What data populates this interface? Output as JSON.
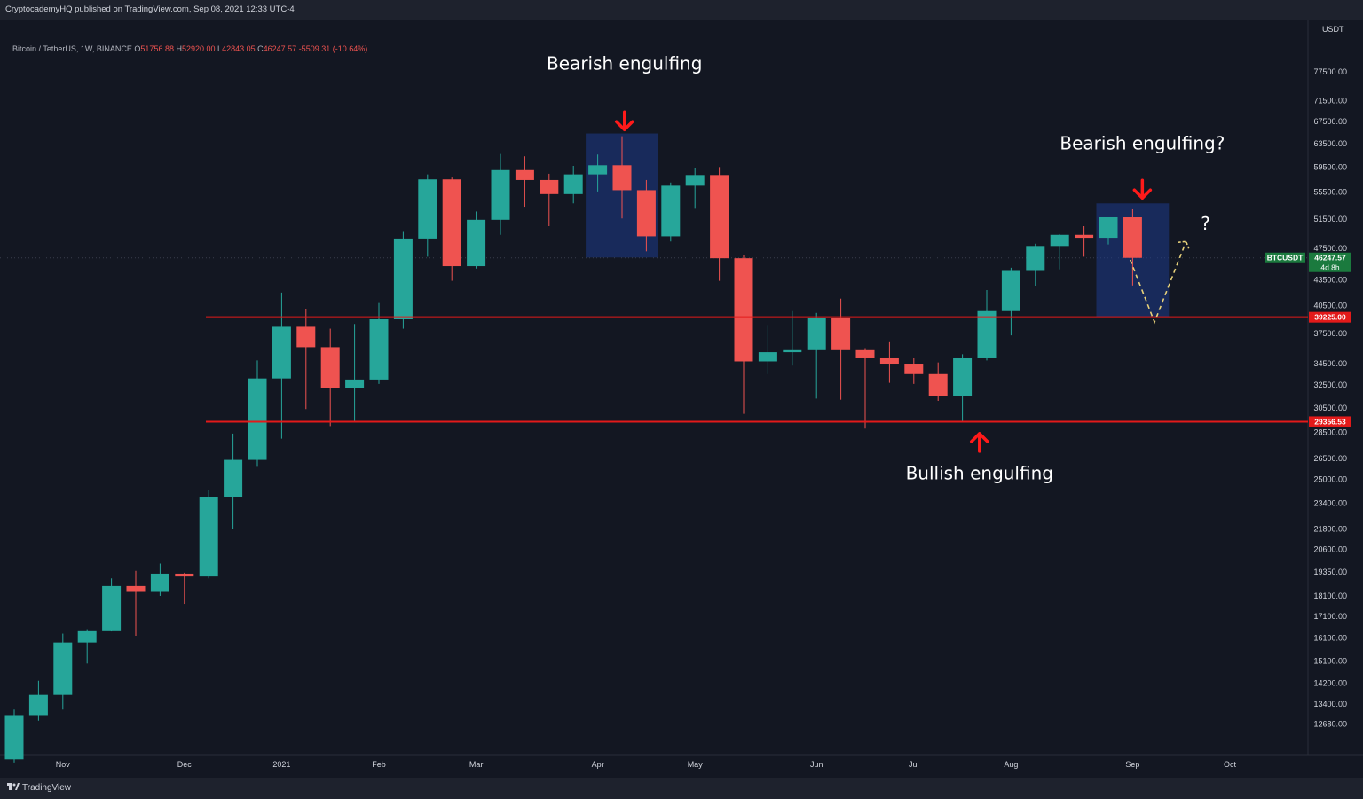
{
  "header": {
    "published": "CryptocademyHQ published on TradingView.com, Sep 08, 2021 12:33 UTC-4"
  },
  "legend": {
    "symbol": "Bitcoin / TetherUS, 1W, BINANCE",
    "o_label": "O",
    "o": "51756.88",
    "h_label": "H",
    "h": "52920.00",
    "l_label": "L",
    "l": "42843.05",
    "c_label": "C",
    "c": "46247.57",
    "change": "-5509.31 (-10.64%)"
  },
  "footer": {
    "logo": "TradingView"
  },
  "colors": {
    "background": "#131722",
    "up": "#26a69a",
    "down": "#ef5350",
    "level_line": "#e31a1a",
    "highlight_box": "#1e3a8a",
    "badge_green": "#1b7a3e",
    "projection": "#e8d27a"
  },
  "chart_data": {
    "type": "candlestick",
    "symbol": "BTCUSDT",
    "interval": "1W",
    "currency": "USDT",
    "y_scale": "log",
    "ylim": [
      12000,
      82000
    ],
    "y_ticks": [
      77500,
      71500,
      67500,
      63500,
      59500,
      55500,
      51500,
      47500,
      43500,
      40500,
      37500,
      34500,
      32500,
      30500,
      28500,
      26500,
      25000,
      23400,
      21800,
      20600,
      19350,
      18100,
      17100,
      16100,
      15100,
      14200,
      13400,
      12680
    ],
    "y_tick_labels": [
      "77500.00",
      "71500.00",
      "67500.00",
      "63500.00",
      "59500.00",
      "55500.00",
      "51500.00",
      "47500.00",
      "43500.00",
      "40500.00",
      "37500.00",
      "34500.00",
      "32500.00",
      "30500.00",
      "28500.00",
      "26500.00",
      "25000.00",
      "23400.00",
      "21800.00",
      "20600.00",
      "19350.00",
      "18100.00",
      "17100.00",
      "16100.00",
      "15100.00",
      "14200.00",
      "13400.00",
      "12680.00"
    ],
    "x_labels": [
      {
        "label": "Nov",
        "week": 2
      },
      {
        "label": "Dec",
        "week": 7
      },
      {
        "label": "2021",
        "week": 11
      },
      {
        "label": "Feb",
        "week": 15
      },
      {
        "label": "Mar",
        "week": 19
      },
      {
        "label": "Apr",
        "week": 24
      },
      {
        "label": "May",
        "week": 28
      },
      {
        "label": "Jun",
        "week": 33
      },
      {
        "label": "Jul",
        "week": 37
      },
      {
        "label": "Aug",
        "week": 41
      },
      {
        "label": "Sep",
        "week": 46
      },
      {
        "label": "Oct",
        "week": 50
      }
    ],
    "candles": [
      {
        "o": 11500,
        "h": 13200,
        "l": 11400,
        "c": 13000
      },
      {
        "o": 13000,
        "h": 14300,
        "l": 12800,
        "c": 13750
      },
      {
        "o": 13750,
        "h": 16300,
        "l": 13200,
        "c": 15900
      },
      {
        "o": 15900,
        "h": 16500,
        "l": 15000,
        "c": 16450
      },
      {
        "o": 16450,
        "h": 19000,
        "l": 16400,
        "c": 18600
      },
      {
        "o": 18600,
        "h": 19400,
        "l": 16200,
        "c": 18300
      },
      {
        "o": 18300,
        "h": 19800,
        "l": 18100,
        "c": 19250
      },
      {
        "o": 19250,
        "h": 19300,
        "l": 17700,
        "c": 19100
      },
      {
        "o": 19100,
        "h": 24300,
        "l": 19000,
        "c": 23800
      },
      {
        "o": 23800,
        "h": 28400,
        "l": 21800,
        "c": 26400
      },
      {
        "o": 26400,
        "h": 34800,
        "l": 25900,
        "c": 33100
      },
      {
        "o": 33100,
        "h": 42000,
        "l": 28000,
        "c": 38200
      },
      {
        "o": 38200,
        "h": 40100,
        "l": 30400,
        "c": 36100
      },
      {
        "o": 36100,
        "h": 38000,
        "l": 29000,
        "c": 32200
      },
      {
        "o": 32200,
        "h": 38500,
        "l": 29300,
        "c": 33000
      },
      {
        "o": 33000,
        "h": 40800,
        "l": 32600,
        "c": 39000
      },
      {
        "o": 39000,
        "h": 49700,
        "l": 38000,
        "c": 48800
      },
      {
        "o": 48800,
        "h": 58300,
        "l": 46400,
        "c": 57500
      },
      {
        "o": 57500,
        "h": 57800,
        "l": 43400,
        "c": 45200
      },
      {
        "o": 45200,
        "h": 52600,
        "l": 44900,
        "c": 51400
      },
      {
        "o": 51400,
        "h": 61700,
        "l": 49300,
        "c": 59000
      },
      {
        "o": 59000,
        "h": 61300,
        "l": 53300,
        "c": 57400
      },
      {
        "o": 57400,
        "h": 58400,
        "l": 50500,
        "c": 55200
      },
      {
        "o": 55200,
        "h": 59700,
        "l": 53800,
        "c": 58300
      },
      {
        "o": 58300,
        "h": 61600,
        "l": 55600,
        "c": 59800
      },
      {
        "o": 59800,
        "h": 64800,
        "l": 51600,
        "c": 55800
      },
      {
        "o": 55800,
        "h": 57400,
        "l": 47100,
        "c": 49100
      },
      {
        "o": 49100,
        "h": 57000,
        "l": 48400,
        "c": 56500
      },
      {
        "o": 56500,
        "h": 59400,
        "l": 53000,
        "c": 58200
      },
      {
        "o": 58200,
        "h": 59500,
        "l": 43400,
        "c": 46200
      },
      {
        "o": 46200,
        "h": 46600,
        "l": 30000,
        "c": 34700
      },
      {
        "o": 34700,
        "h": 38300,
        "l": 33500,
        "c": 35600
      },
      {
        "o": 35600,
        "h": 39900,
        "l": 34300,
        "c": 35800
      },
      {
        "o": 35800,
        "h": 39700,
        "l": 31300,
        "c": 39100
      },
      {
        "o": 39100,
        "h": 41300,
        "l": 31200,
        "c": 35800
      },
      {
        "o": 35800,
        "h": 36000,
        "l": 28800,
        "c": 35000
      },
      {
        "o": 35000,
        "h": 36600,
        "l": 32700,
        "c": 34400
      },
      {
        "o": 34400,
        "h": 35000,
        "l": 32600,
        "c": 33500
      },
      {
        "o": 33500,
        "h": 34600,
        "l": 31100,
        "c": 31500
      },
      {
        "o": 31500,
        "h": 35400,
        "l": 29300,
        "c": 35000
      },
      {
        "o": 35000,
        "h": 42300,
        "l": 34800,
        "c": 39900
      },
      {
        "o": 39900,
        "h": 45000,
        "l": 37300,
        "c": 44600
      },
      {
        "o": 44600,
        "h": 48100,
        "l": 42800,
        "c": 47800
      },
      {
        "o": 47800,
        "h": 49400,
        "l": 44800,
        "c": 49300
      },
      {
        "o": 49300,
        "h": 50500,
        "l": 46400,
        "c": 48900
      },
      {
        "o": 48900,
        "h": 51300,
        "l": 48000,
        "c": 51760
      },
      {
        "o": 51757,
        "h": 52920,
        "l": 42843,
        "c": 46248
      }
    ],
    "levels": [
      {
        "value": 39225.0,
        "label": "39225.00"
      },
      {
        "value": 29356.53,
        "label": "29356.53"
      }
    ],
    "last_price": {
      "label": "BTCUSDT",
      "value": "46247.57",
      "countdown": "4d 8h"
    },
    "highlights": [
      {
        "from_week": 24,
        "to_week": 26,
        "y_top": 65300,
        "y_bottom": 46300
      },
      {
        "from_week": 45,
        "to_week": 47,
        "y_top": 53800,
        "y_bottom": 39300
      }
    ],
    "projection": [
      {
        "week": 45.9,
        "value": 46000
      },
      {
        "week": 46.9,
        "value": 38700
      },
      {
        "week": 48.2,
        "value": 48400
      }
    ],
    "annotations": [
      {
        "text": "Bearish engulfing",
        "week": 25.1,
        "value": 78000,
        "arrow": "down",
        "arrow_value": 66000
      },
      {
        "text": "Bearish engulfing?",
        "week": 46.4,
        "value": 62500,
        "arrow": "down",
        "arrow_value": 54600
      },
      {
        "text": "Bullish engulfing",
        "week": 39.7,
        "value": 25000,
        "arrow": "up",
        "arrow_value": 28400
      },
      {
        "text": "?",
        "week": 49.0,
        "value": 50000,
        "arrow": "none"
      }
    ]
  }
}
